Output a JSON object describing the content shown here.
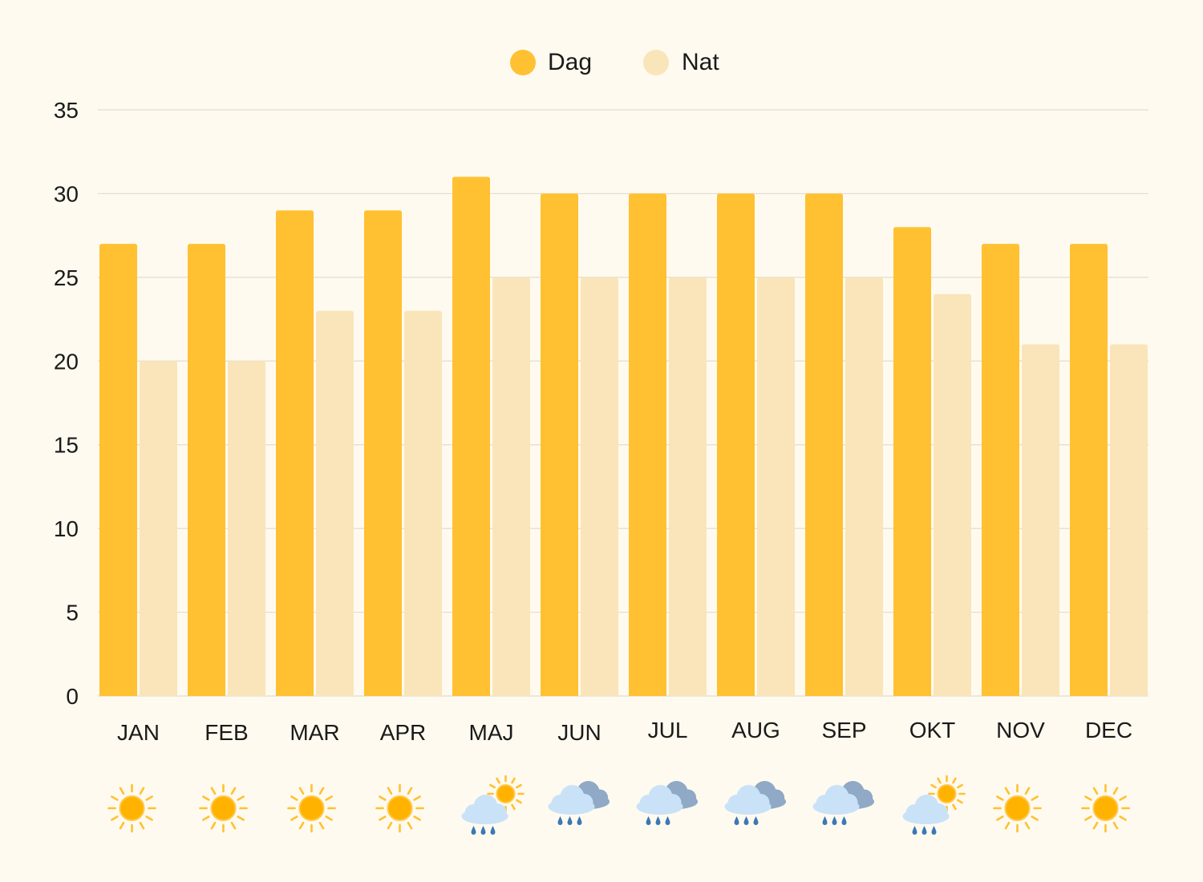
{
  "chart_data": {
    "type": "bar",
    "categories": [
      "JAN",
      "FEB",
      "MAR",
      "APR",
      "MAJ",
      "JUN",
      "JUL",
      "AUG",
      "SEP",
      "OKT",
      "NOV",
      "DEC"
    ],
    "series": [
      {
        "name": "Dag",
        "values": [
          27,
          27,
          29,
          29,
          31,
          30,
          30,
          30,
          30,
          28,
          27,
          27
        ],
        "color": "#ffc131"
      },
      {
        "name": "Nat",
        "values": [
          20,
          20,
          23,
          23,
          25,
          25,
          25,
          25,
          25,
          24,
          21,
          21
        ],
        "color": "#f9e5b9"
      }
    ],
    "yticks": [
      0,
      5,
      10,
      15,
      20,
      25,
      30,
      35
    ],
    "ylim": [
      0,
      35
    ],
    "grid": true,
    "legend_position": "top-center",
    "weather_icons": [
      "sun-icon",
      "sun-icon",
      "sun-icon",
      "sun-icon",
      "rain-sun-icon",
      "rain-cloud-icon",
      "rain-cloud-icon",
      "rain-cloud-icon",
      "rain-cloud-icon",
      "rain-sun-icon",
      "sun-icon",
      "sun-icon"
    ]
  }
}
